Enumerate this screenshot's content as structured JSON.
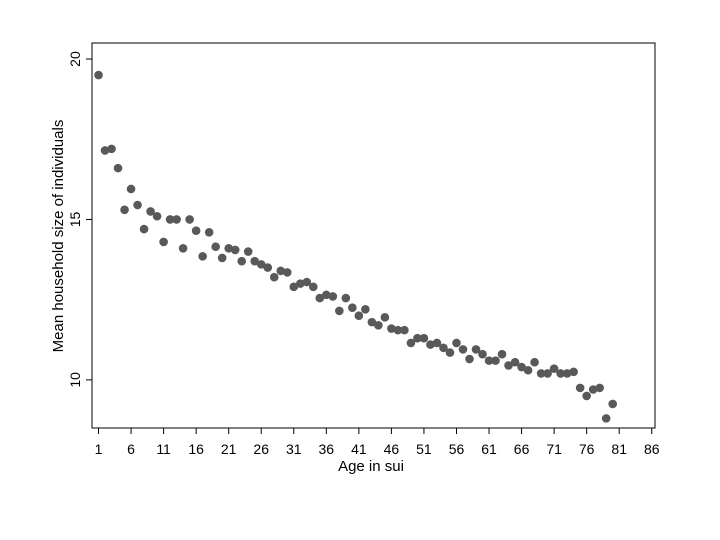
{
  "chart_data": {
    "type": "scatter",
    "title": "",
    "xlabel": "Age in sui",
    "ylabel": "Mean household size of individuals",
    "xlim": [
      0,
      86.5
    ],
    "ylim": [
      8.5,
      20.5
    ],
    "xticks": [
      1,
      6,
      11,
      16,
      21,
      26,
      31,
      36,
      41,
      46,
      51,
      56,
      61,
      66,
      71,
      76,
      81,
      86
    ],
    "yticks": [
      10,
      15,
      20
    ],
    "grid": false,
    "marker_color": "#595959",
    "series": [
      {
        "x": [
          1,
          2,
          3,
          4,
          5,
          6,
          7,
          8,
          9,
          10,
          11,
          12,
          13,
          14,
          15,
          16,
          17,
          18,
          19,
          20,
          21,
          22,
          23,
          24,
          25,
          26,
          27,
          28,
          29,
          30,
          31,
          32,
          33,
          34,
          35,
          36,
          37,
          38,
          39,
          40,
          41,
          42,
          43,
          44,
          45,
          46,
          47,
          48,
          49,
          50,
          51,
          52,
          53,
          54,
          55,
          56,
          57,
          58,
          59,
          60,
          61,
          62,
          63,
          64,
          65,
          66,
          67,
          68,
          69,
          70,
          71,
          72,
          73,
          74,
          75,
          76,
          77,
          78,
          79,
          80
        ],
        "y": [
          19.5,
          17.15,
          17.2,
          16.6,
          15.3,
          15.95,
          15.45,
          14.7,
          15.25,
          15.1,
          14.3,
          15.0,
          15.0,
          14.1,
          15.0,
          14.65,
          13.85,
          14.6,
          14.15,
          13.8,
          14.1,
          14.05,
          13.7,
          14.0,
          13.7,
          13.6,
          13.5,
          13.2,
          13.4,
          13.35,
          12.9,
          13.0,
          13.05,
          12.9,
          12.55,
          12.65,
          12.6,
          12.15,
          12.55,
          12.25,
          12.0,
          12.2,
          11.8,
          11.7,
          11.95,
          11.6,
          11.55,
          11.55,
          11.15,
          11.3,
          11.3,
          11.1,
          11.15,
          11.0,
          10.85,
          11.15,
          10.95,
          10.65,
          10.95,
          10.8,
          10.6,
          10.6,
          10.8,
          10.45,
          10.55,
          10.4,
          10.3,
          10.55,
          10.2,
          10.2,
          10.35,
          10.2,
          10.2,
          10.25,
          9.75,
          9.5,
          9.7,
          9.75,
          8.8,
          9.25
        ]
      }
    ]
  }
}
